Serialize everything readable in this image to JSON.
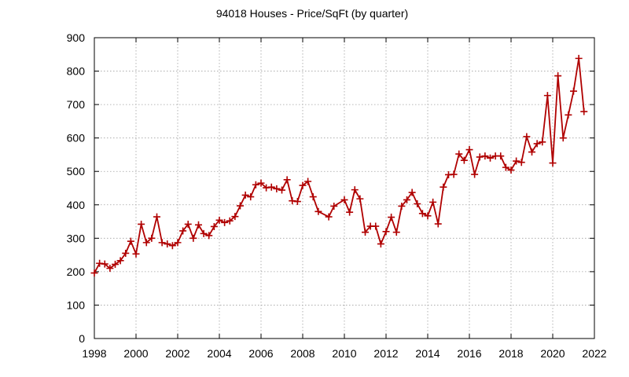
{
  "chart_data": {
    "type": "line",
    "title": "94018 Houses - Price/SqFt (by quarter)",
    "xlabel": "",
    "ylabel": "",
    "xlim": [
      1998,
      2022
    ],
    "ylim": [
      0,
      900
    ],
    "xticks": [
      1998,
      2000,
      2002,
      2004,
      2006,
      2008,
      2010,
      2012,
      2014,
      2016,
      2018,
      2020,
      2022
    ],
    "yticks": [
      0,
      100,
      200,
      300,
      400,
      500,
      600,
      700,
      800,
      900
    ],
    "grid": true,
    "legend": "none",
    "colors": {
      "series": "#b00000"
    },
    "series": [
      {
        "marker": "plus",
        "x": [
          1998.0,
          1998.25,
          1998.5,
          1998.75,
          1999.0,
          1999.25,
          1999.5,
          1999.75,
          2000.0,
          2000.25,
          2000.5,
          2000.75,
          2001.0,
          2001.25,
          2001.5,
          2001.75,
          2002.0,
          2002.25,
          2002.5,
          2002.75,
          2003.0,
          2003.25,
          2003.5,
          2003.75,
          2004.0,
          2004.25,
          2004.5,
          2004.75,
          2005.0,
          2005.25,
          2005.5,
          2005.75,
          2006.0,
          2006.25,
          2006.5,
          2006.75,
          2007.0,
          2007.25,
          2007.5,
          2007.75,
          2008.0,
          2008.25,
          2008.5,
          2008.75,
          2009.25,
          2009.5,
          2010.0,
          2010.25,
          2010.5,
          2010.75,
          2011.0,
          2011.25,
          2011.5,
          2011.75,
          2012.0,
          2012.25,
          2012.5,
          2012.75,
          2013.0,
          2013.25,
          2013.5,
          2013.75,
          2014.0,
          2014.25,
          2014.5,
          2014.75,
          2015.0,
          2015.25,
          2015.5,
          2015.75,
          2016.0,
          2016.25,
          2016.5,
          2016.75,
          2017.0,
          2017.25,
          2017.5,
          2017.75,
          2018.0,
          2018.25,
          2018.5,
          2018.75,
          2019.0,
          2019.25,
          2019.5,
          2019.75,
          2020.0,
          2020.25,
          2020.5,
          2020.75,
          2021.0,
          2021.25,
          2021.5
        ],
        "y": [
          196,
          225,
          223,
          210,
          222,
          233,
          255,
          291,
          253,
          342,
          287,
          300,
          364,
          287,
          283,
          278,
          287,
          322,
          342,
          300,
          340,
          314,
          308,
          335,
          354,
          347,
          352,
          365,
          397,
          429,
          424,
          460,
          465,
          451,
          453,
          448,
          444,
          475,
          412,
          410,
          458,
          470,
          424,
          380,
          364,
          396,
          415,
          378,
          445,
          418,
          318,
          336,
          336,
          283,
          320,
          363,
          318,
          396,
          415,
          437,
          403,
          374,
          367,
          408,
          343,
          453,
          490,
          491,
          552,
          533,
          565,
          491,
          543,
          546,
          540,
          546,
          546,
          512,
          504,
          531,
          527,
          604,
          558,
          583,
          588,
          727,
          525,
          786,
          600,
          669,
          740,
          838,
          679
        ]
      }
    ]
  }
}
